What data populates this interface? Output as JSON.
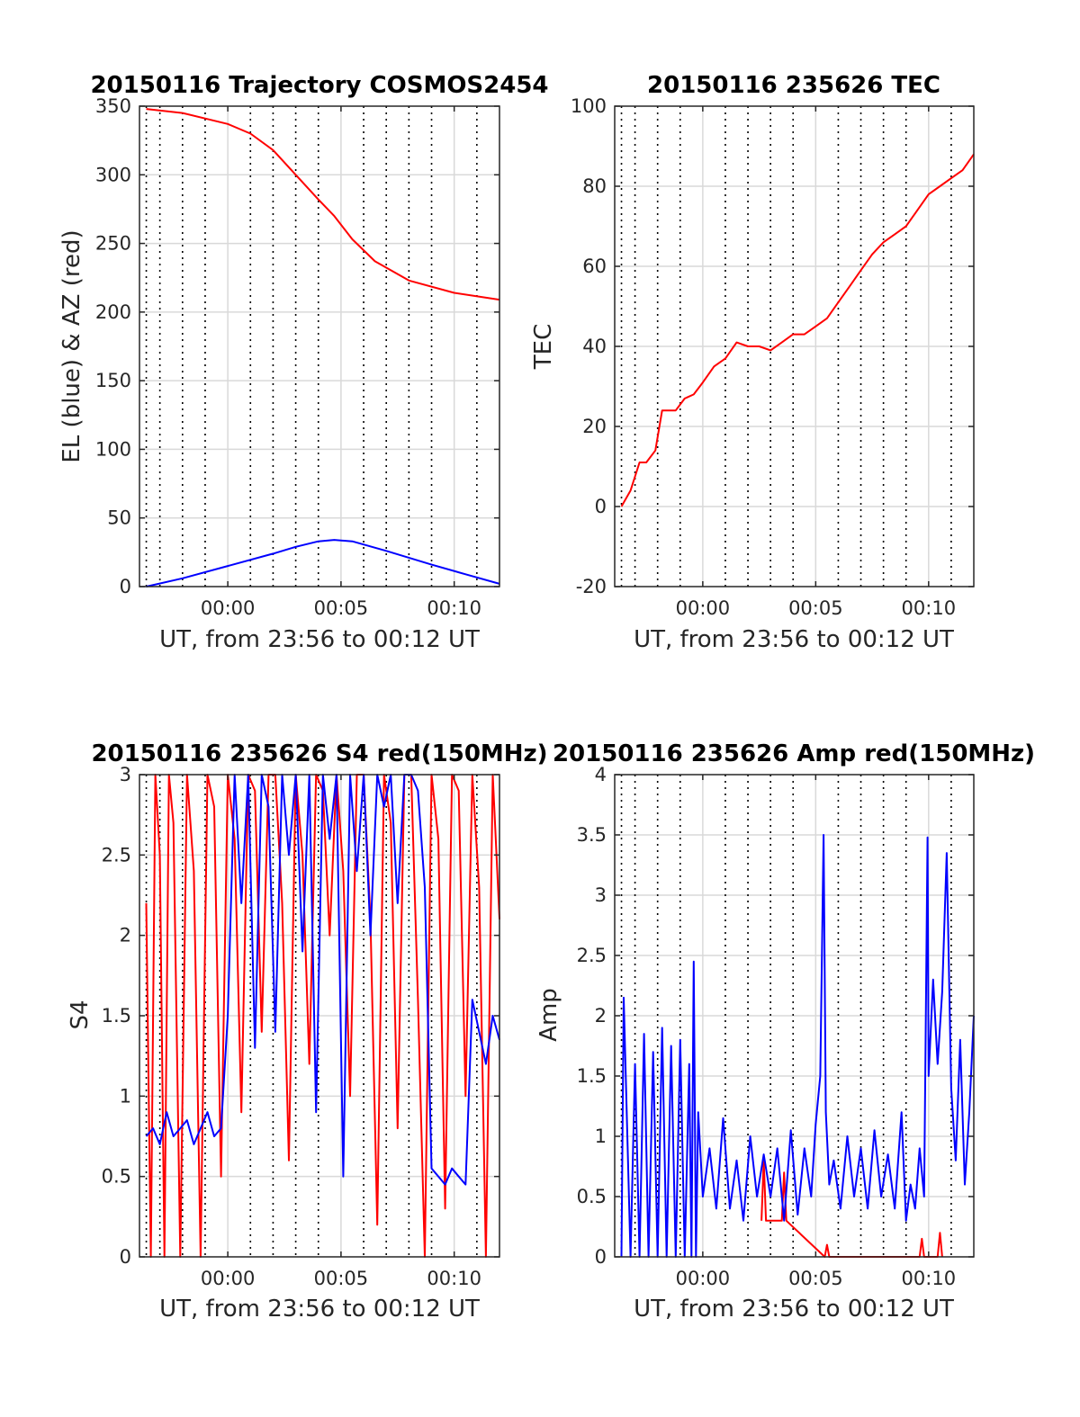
{
  "colors": {
    "el_series": "#0000ff",
    "az_series": "#ff0000",
    "grid": "#d9d9d9",
    "dotted_lines": "#000000",
    "axes": "#262626"
  },
  "chart_data": [
    {
      "type": "line",
      "title": "20150116 Trajectory COSMOS2454",
      "xlabel": "UT, from 23:56 to 00:12 UT",
      "ylabel": "EL (blue) & AZ (red)",
      "xlim": [
        -3.9,
        12
      ],
      "ylim": [
        0,
        350
      ],
      "xtick_labels": [
        "00:00",
        "00:05",
        "00:10"
      ],
      "xticks": [
        0,
        5,
        10
      ],
      "ytick_labels": [
        "0",
        "50",
        "100",
        "150",
        "200",
        "250",
        "300",
        "350"
      ],
      "yticks": [
        0,
        50,
        100,
        150,
        200,
        250,
        300,
        350
      ],
      "grid": true,
      "dotted_verticals": true,
      "series": [
        {
          "color": "#ff0000",
          "x": [
            -3.6,
            -2,
            0,
            1,
            2,
            3,
            4,
            4.7,
            5.5,
            6.5,
            8,
            10,
            12
          ],
          "values": [
            348,
            345,
            337,
            330,
            318,
            300,
            282,
            270,
            253,
            237,
            223,
            214,
            209
          ]
        },
        {
          "color": "#0000ff",
          "x": [
            -3.6,
            -2,
            0,
            2,
            3,
            4,
            4.7,
            5.5,
            7,
            9,
            10.5,
            12
          ],
          "values": [
            0,
            6,
            15,
            24,
            29,
            33,
            34,
            33,
            26,
            16,
            9,
            2
          ]
        }
      ]
    },
    {
      "type": "line",
      "title": "20150116 235626 TEC",
      "xlabel": "UT, from 23:56 to 00:12 UT",
      "ylabel": "TEC",
      "xlim": [
        -3.9,
        12
      ],
      "ylim": [
        -20,
        100
      ],
      "xtick_labels": [
        "00:00",
        "00:05",
        "00:10"
      ],
      "xticks": [
        0,
        5,
        10
      ],
      "ytick_labels": [
        "-20",
        "0",
        "20",
        "40",
        "60",
        "80",
        "100"
      ],
      "yticks": [
        -20,
        0,
        20,
        40,
        60,
        80,
        100
      ],
      "grid": true,
      "dotted_verticals": true,
      "series": [
        {
          "color": "#ff0000",
          "x": [
            -3.6,
            -3.2,
            -2.8,
            -2.5,
            -2.1,
            -1.8,
            -1.5,
            -1.2,
            -0.8,
            -0.4,
            0,
            0.5,
            1,
            1.5,
            2,
            2.5,
            3,
            3.5,
            4,
            4.5,
            5,
            5.5,
            6,
            6.5,
            7,
            7.5,
            8,
            8.5,
            9,
            9.5,
            10,
            10.5,
            11,
            11.5,
            12
          ],
          "values": [
            0,
            4,
            11,
            11,
            14,
            24,
            24,
            24,
            27,
            28,
            31,
            35,
            37,
            41,
            40,
            40,
            39,
            41,
            43,
            43,
            45,
            47,
            51,
            55,
            59,
            63,
            66,
            68,
            70,
            74,
            78,
            80,
            82,
            84,
            88
          ]
        }
      ]
    },
    {
      "type": "line",
      "title": "20150116 235626 S4 red(150MHz)",
      "xlabel": "UT, from 23:56 to 00:12 UT",
      "ylabel": "S4",
      "xlim": [
        -3.9,
        12
      ],
      "ylim": [
        0,
        3
      ],
      "xtick_labels": [
        "00:00",
        "00:05",
        "00:10"
      ],
      "xticks": [
        0,
        5,
        10
      ],
      "ytick_labels": [
        "0",
        "0.5",
        "1",
        "1.5",
        "2",
        "2.5",
        "3"
      ],
      "yticks": [
        0,
        0.5,
        1,
        1.5,
        2,
        2.5,
        3
      ],
      "grid": true,
      "dotted_verticals": true,
      "series": [
        {
          "color": "#ff0000",
          "x": [
            -3.6,
            -3.4,
            -3.2,
            -3.0,
            -2.8,
            -2.6,
            -2.4,
            -2.1,
            -1.8,
            -1.5,
            -1.2,
            -0.9,
            -0.6,
            -0.3,
            0.0,
            0.3,
            0.6,
            0.9,
            1.2,
            1.5,
            1.8,
            2.1,
            2.4,
            2.7,
            3.0,
            3.3,
            3.6,
            3.9,
            4.2,
            4.5,
            4.8,
            5.1,
            5.4,
            5.7,
            6.0,
            6.3,
            6.6,
            6.9,
            7.2,
            7.5,
            7.8,
            8.1,
            8.4,
            8.7,
            9.0,
            9.3,
            9.6,
            9.9,
            10.2,
            10.5,
            10.8,
            11.1,
            11.4,
            11.7,
            12.0
          ],
          "values": [
            2.2,
            0,
            3,
            2.5,
            0,
            3,
            2.7,
            0,
            3,
            2.4,
            0,
            3,
            2.8,
            0.5,
            3,
            2.6,
            0.9,
            3,
            2.9,
            1.4,
            3,
            3,
            2.2,
            0.6,
            3,
            2.5,
            1.2,
            3,
            2.9,
            2.0,
            3,
            2.4,
            1.0,
            3,
            3,
            2.1,
            0.2,
            3,
            2.7,
            0.8,
            3,
            3,
            1.6,
            0,
            3,
            2.6,
            0.3,
            3,
            2.9,
            1.0,
            3,
            2.3,
            0,
            3,
            2.1
          ]
        },
        {
          "color": "#0000ff",
          "x": [
            -3.6,
            -3.3,
            -3.0,
            -2.7,
            -2.4,
            -2.1,
            -1.8,
            -1.5,
            -1.2,
            -0.9,
            -0.6,
            -0.3,
            0.0,
            0.3,
            0.6,
            0.9,
            1.2,
            1.5,
            1.8,
            2.1,
            2.4,
            2.7,
            3.0,
            3.3,
            3.6,
            3.9,
            4.2,
            4.5,
            4.8,
            5.1,
            5.4,
            5.7,
            6.0,
            6.3,
            6.6,
            6.9,
            7.2,
            7.5,
            7.8,
            8.1,
            8.4,
            8.7,
            9.0,
            9.3,
            9.6,
            9.9,
            10.2,
            10.5,
            10.8,
            11.1,
            11.4,
            11.7,
            12.0
          ],
          "values": [
            0.75,
            0.8,
            0.7,
            0.9,
            0.75,
            0.8,
            0.85,
            0.7,
            0.8,
            0.9,
            0.75,
            0.8,
            1.5,
            3,
            2.2,
            3,
            1.3,
            3,
            2.8,
            1.4,
            3,
            2.5,
            3,
            1.9,
            3,
            0.9,
            3,
            2.6,
            3,
            0.5,
            3,
            2.4,
            3,
            2.0,
            3,
            2.8,
            3,
            2.2,
            3,
            3,
            2.9,
            2.3,
            0.55,
            0.5,
            0.45,
            0.55,
            0.5,
            0.45,
            1.6,
            1.4,
            1.2,
            1.5,
            1.35
          ]
        }
      ]
    },
    {
      "type": "line",
      "title": "20150116 235626 Amp red(150MHz)",
      "xlabel": "UT, from 23:56 to 00:12 UT",
      "ylabel": "Amp",
      "xlim": [
        -3.9,
        12
      ],
      "ylim": [
        0,
        4
      ],
      "xtick_labels": [
        "00:00",
        "00:05",
        "00:10"
      ],
      "xticks": [
        0,
        5,
        10
      ],
      "ytick_labels": [
        "0",
        "0.5",
        "1",
        "1.5",
        "2",
        "2.5",
        "3",
        "3.5",
        "4"
      ],
      "yticks": [
        0,
        0.5,
        1,
        1.5,
        2,
        2.5,
        3,
        3.5,
        4
      ],
      "grid": true,
      "dotted_verticals": true,
      "series": [
        {
          "color": "#ff0000",
          "x": [
            2.6,
            2.7,
            2.8,
            3.5,
            3.6,
            3.7,
            5.4,
            5.5,
            5.6,
            9.6,
            9.7,
            9.8,
            10.4,
            10.5,
            10.6
          ],
          "values": [
            0.3,
            0.8,
            0.3,
            0.3,
            0.7,
            0.3,
            0,
            0.1,
            0,
            0,
            0.15,
            0,
            0,
            0.2,
            0
          ]
        },
        {
          "color": "#0000ff",
          "x": [
            -3.6,
            -3.5,
            -3.2,
            -3.0,
            -2.8,
            -2.6,
            -2.4,
            -2.2,
            -2.0,
            -1.8,
            -1.6,
            -1.4,
            -1.2,
            -1.0,
            -0.8,
            -0.6,
            -0.5,
            -0.4,
            -0.3,
            -0.2,
            0.0,
            0.3,
            0.6,
            0.9,
            1.2,
            1.5,
            1.8,
            2.1,
            2.4,
            2.7,
            3.0,
            3.3,
            3.6,
            3.9,
            4.2,
            4.5,
            4.8,
            5.0,
            5.2,
            5.35,
            5.45,
            5.6,
            5.8,
            6.1,
            6.4,
            6.7,
            7.0,
            7.3,
            7.6,
            7.9,
            8.2,
            8.5,
            8.8,
            9.0,
            9.2,
            9.4,
            9.6,
            9.8,
            9.95,
            10.0,
            10.2,
            10.4,
            10.6,
            10.8,
            11.0,
            11.2,
            11.4,
            11.6,
            11.8,
            12.0
          ],
          "values": [
            0,
            2.15,
            0,
            1.6,
            0,
            1.85,
            0,
            1.7,
            0,
            1.9,
            0,
            1.75,
            0,
            1.8,
            0,
            1.6,
            0,
            2.45,
            0,
            1.2,
            0.5,
            0.9,
            0.4,
            1.15,
            0.4,
            0.8,
            0.3,
            1.0,
            0.5,
            0.85,
            0.5,
            0.9,
            0.3,
            1.05,
            0.35,
            0.9,
            0.5,
            1.1,
            1.5,
            3.5,
            1.2,
            0.6,
            0.8,
            0.4,
            1.0,
            0.5,
            0.9,
            0.4,
            1.05,
            0.5,
            0.85,
            0.4,
            1.2,
            0.3,
            0.6,
            0.4,
            0.9,
            0.5,
            3.48,
            1.5,
            2.3,
            1.6,
            2.2,
            3.35,
            1.4,
            0.8,
            1.8,
            0.6,
            1.2,
            2.0
          ]
        }
      ]
    }
  ]
}
